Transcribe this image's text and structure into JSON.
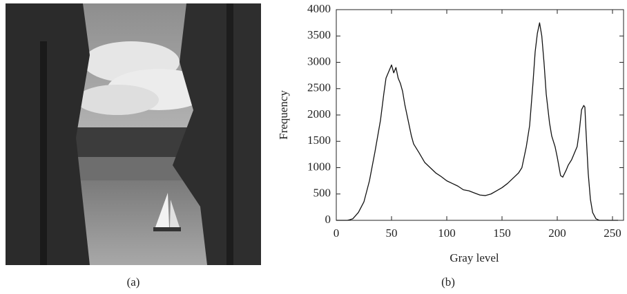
{
  "image": {
    "caption": "(a)"
  },
  "chart_data": {
    "type": "line",
    "caption": "(b)",
    "x_label": "Gray level",
    "y_label": "Frequency",
    "color": "#111111",
    "x": [
      0,
      5,
      10,
      12,
      15,
      20,
      25,
      30,
      35,
      40,
      43,
      45,
      48,
      50,
      52,
      54,
      56,
      58,
      60,
      62,
      65,
      68,
      70,
      75,
      80,
      85,
      90,
      95,
      100,
      105,
      110,
      115,
      120,
      125,
      130,
      135,
      140,
      145,
      150,
      155,
      160,
      165,
      168,
      170,
      172,
      175,
      178,
      180,
      182,
      184,
      186,
      188,
      190,
      193,
      195,
      198,
      200,
      203,
      205,
      208,
      210,
      213,
      216,
      218,
      220,
      222,
      224,
      225,
      226,
      228,
      230,
      232,
      235,
      238,
      240,
      245,
      250,
      255
    ],
    "values": [
      0,
      0,
      0,
      10,
      30,
      150,
      350,
      750,
      1300,
      1900,
      2400,
      2700,
      2850,
      2950,
      2800,
      2900,
      2700,
      2600,
      2450,
      2200,
      1900,
      1600,
      1450,
      1280,
      1100,
      1000,
      900,
      830,
      750,
      700,
      650,
      580,
      560,
      520,
      480,
      470,
      500,
      560,
      620,
      700,
      800,
      900,
      1000,
      1200,
      1400,
      1800,
      2600,
      3200,
      3550,
      3750,
      3500,
      3000,
      2400,
      1850,
      1600,
      1400,
      1200,
      850,
      820,
      950,
      1050,
      1150,
      1300,
      1400,
      1700,
      2100,
      2180,
      2150,
      1700,
      900,
      400,
      150,
      30,
      0,
      0,
      0,
      0,
      0
    ],
    "xlim": [
      0,
      260
    ],
    "ylim": [
      0,
      4000
    ],
    "xticks": [
      0,
      50,
      100,
      150,
      200,
      250
    ],
    "yticks": [
      0,
      500,
      1000,
      1500,
      2000,
      2500,
      3000,
      3500,
      4000
    ]
  }
}
